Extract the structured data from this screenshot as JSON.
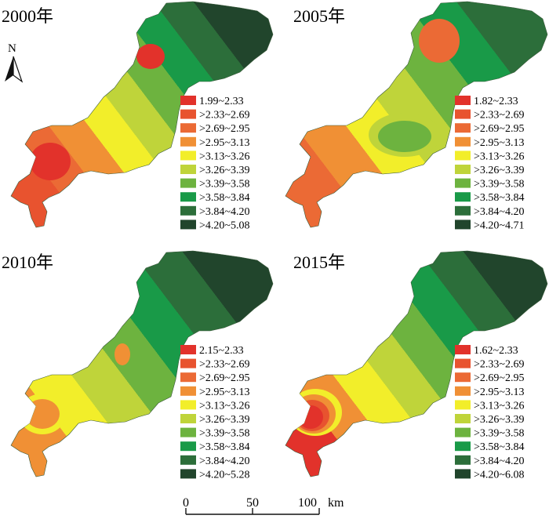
{
  "palette": {
    "red": "#e2322b",
    "red_orange": "#e8532f",
    "orange_red": "#eb6a35",
    "orange": "#f09035",
    "yellow": "#f2ee2a",
    "yellow_green": "#bfd43a",
    "light_green": "#6db33f",
    "green": "#199a48",
    "dark_green": "#2c6e3a",
    "darkest_green": "#21452c"
  },
  "north_arrow": {
    "label": "N",
    "icon": "north-arrow-icon"
  },
  "scale_bar": {
    "ticks": [
      "0",
      "50",
      "100"
    ],
    "unit": "km"
  },
  "panels": [
    {
      "year": "2000年",
      "legend": [
        "1.99~2.33",
        ">2.33~2.69",
        ">2.69~2.95",
        ">2.95~3.13",
        ">3.13~3.26",
        ">3.26~3.39",
        ">3.39~3.58",
        ">3.58~3.84",
        ">3.84~4.20",
        ">4.20~5.08"
      ],
      "zones": [
        "red_orange",
        "orange_red",
        "orange",
        "yellow",
        "yellow_green",
        "light_green",
        "green",
        "dark_green",
        "darkest_green"
      ]
    },
    {
      "year": "2005年",
      "legend": [
        "1.82~2.33",
        ">2.33~2.69",
        ">2.69~2.95",
        ">2.95~3.13",
        ">3.13~3.26",
        ">3.26~3.39",
        ">3.39~3.58",
        ">3.58~3.84",
        ">3.84~4.20",
        ">4.20~4.71"
      ],
      "zones": [
        "orange_red",
        "orange",
        "yellow",
        "yellow_green",
        "light_green",
        "green",
        "dark_green"
      ]
    },
    {
      "year": "2010年",
      "legend": [
        "2.15~2.33",
        ">2.33~2.69",
        ">2.69~2.95",
        ">2.95~3.13",
        ">3.13~3.26",
        ">3.26~3.39",
        ">3.39~3.58",
        ">3.58~3.84",
        ">3.84~4.20",
        ">4.20~5.28"
      ],
      "zones": [
        "orange",
        "yellow",
        "yellow_green",
        "light_green",
        "green",
        "dark_green",
        "darkest_green"
      ]
    },
    {
      "year": "2015年",
      "legend": [
        "1.62~2.33",
        ">2.33~2.69",
        ">2.69~2.95",
        ">2.95~3.13",
        ">3.13~3.26",
        ">3.26~3.39",
        ">3.39~3.58",
        ">3.58~3.84",
        ">3.84~4.20",
        ">4.20~6.08"
      ],
      "zones": [
        "red",
        "orange",
        "yellow",
        "yellow_green",
        "light_green",
        "green",
        "dark_green",
        "darkest_green"
      ]
    }
  ]
}
